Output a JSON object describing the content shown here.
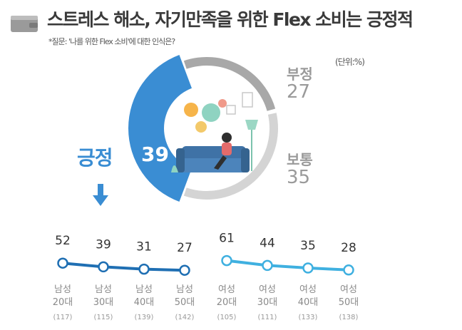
{
  "header": {
    "title": "스트레스 해소, 자기만족을 위한 Flex 소비는 긍정적",
    "note": "*질문: '나를 위한 Flex 소비'에 대한 인식은?",
    "unit": "(단위:%)"
  },
  "icons": {
    "header_icon": "wallet-icon",
    "arrow_icon": "arrow-down-icon"
  },
  "colors": {
    "positive": "#3a8dd3",
    "negative_ring": "#a8a8a8",
    "neutral_ring": "#d4d4d4",
    "male_line": "#1f6fb3",
    "female_line": "#3fb0e0",
    "muted_text": "#9a9a9a"
  },
  "chart_data": [
    {
      "type": "pie",
      "style": "donut",
      "slices": [
        {
          "label": "긍정",
          "value": 39
        },
        {
          "label": "부정",
          "value": 27
        },
        {
          "label": "보통",
          "value": 35
        }
      ]
    },
    {
      "type": "line",
      "series": [
        {
          "categories": [
            "남성 20대",
            "남성 30대",
            "남성 40대",
            "남성 50대"
          ],
          "labels_line1": [
            "남성",
            "남성",
            "남성",
            "남성"
          ],
          "labels_line2": [
            "20대",
            "30대",
            "40대",
            "50대"
          ],
          "counts": [
            "(117)",
            "(115)",
            "(139)",
            "(142)"
          ],
          "values": [
            52,
            39,
            31,
            27
          ]
        },
        {
          "categories": [
            "여성 20대",
            "여성 30대",
            "여성 40대",
            "여성 50대"
          ],
          "labels_line1": [
            "여성",
            "여성",
            "여성",
            "여성"
          ],
          "labels_line2": [
            "20대",
            "30대",
            "40대",
            "50대"
          ],
          "counts": [
            "(105)",
            "(111)",
            "(133)",
            "(138)"
          ],
          "values": [
            61,
            44,
            35,
            28
          ]
        }
      ]
    }
  ]
}
